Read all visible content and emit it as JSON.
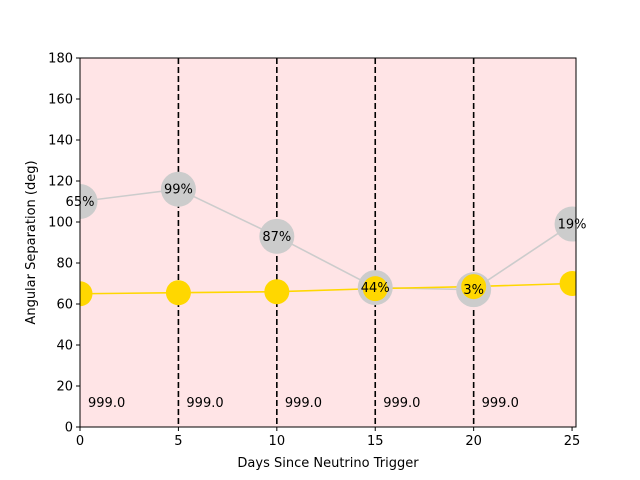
{
  "chart_data": {
    "type": "line",
    "xlabel": "Days Since Neutrino Trigger",
    "ylabel": "Angular Separation (deg)",
    "xlim": [
      0,
      25.2
    ],
    "ylim": [
      0,
      180
    ],
    "xticks": [
      0,
      5,
      10,
      15,
      20,
      25
    ],
    "yticks": [
      0,
      20,
      40,
      60,
      80,
      100,
      120,
      140,
      160,
      180
    ],
    "grid": false,
    "background_color": "#ffe4e6",
    "vlines": {
      "x": [
        5,
        10,
        15,
        20
      ],
      "style": "dashed",
      "color": "#000000"
    },
    "vline_labels": {
      "x": [
        0,
        5,
        10,
        15,
        20
      ],
      "y": 12,
      "texts": [
        "999.0",
        "999.0",
        "999.0",
        "999.0",
        "999.0"
      ]
    },
    "series": [
      {
        "color": "#cccccc",
        "x": [
          0,
          5,
          10,
          15,
          20,
          25
        ],
        "y": [
          110,
          116,
          93,
          68,
          67,
          99
        ],
        "labels": [
          "65%",
          "99%",
          "87%",
          "44%",
          "3%",
          "19%"
        ]
      },
      {
        "color": "#ffd700",
        "x": [
          0,
          5,
          10,
          15,
          20,
          25
        ],
        "y": [
          65,
          65.5,
          66,
          67.5,
          68.5,
          70
        ]
      }
    ]
  }
}
